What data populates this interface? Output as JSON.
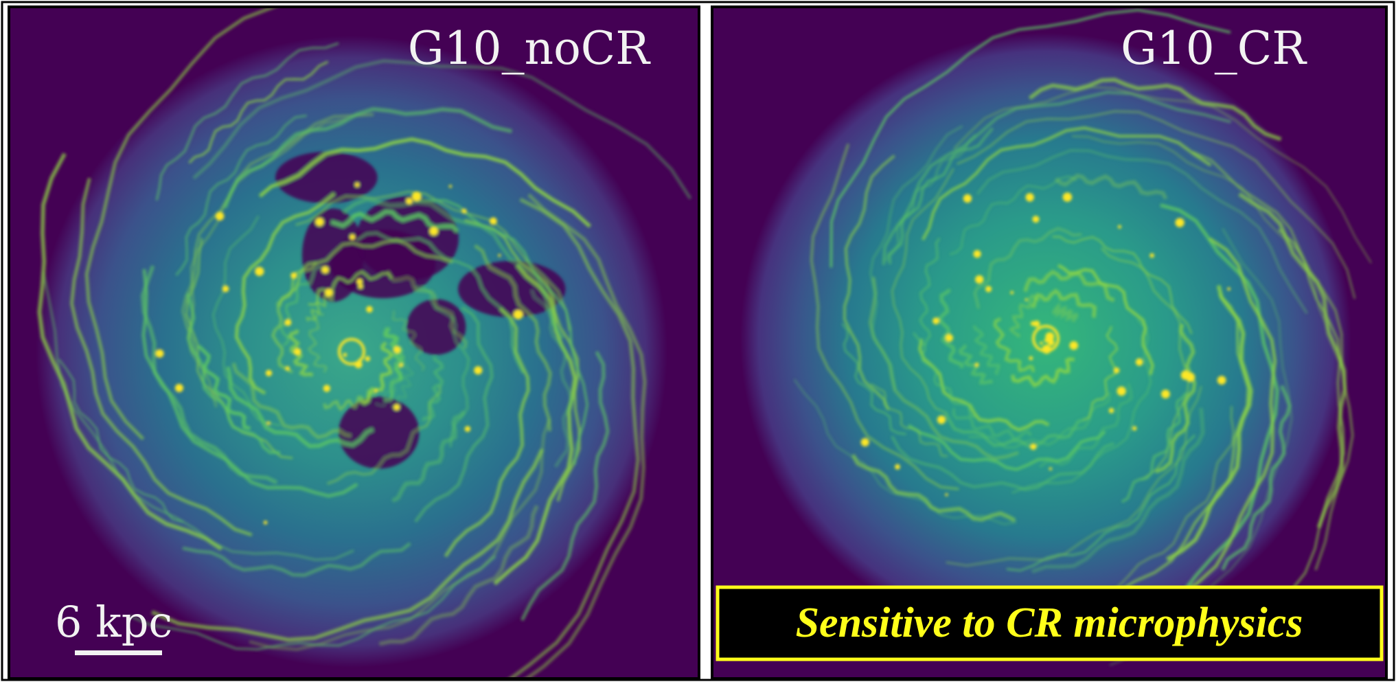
{
  "panels": [
    {
      "label": "G10_noCR"
    },
    {
      "label": "G10_CR"
    }
  ],
  "scale_bar": {
    "label": "6 kpc"
  },
  "callout": {
    "text": "Sensitive to CR microphysics"
  }
}
